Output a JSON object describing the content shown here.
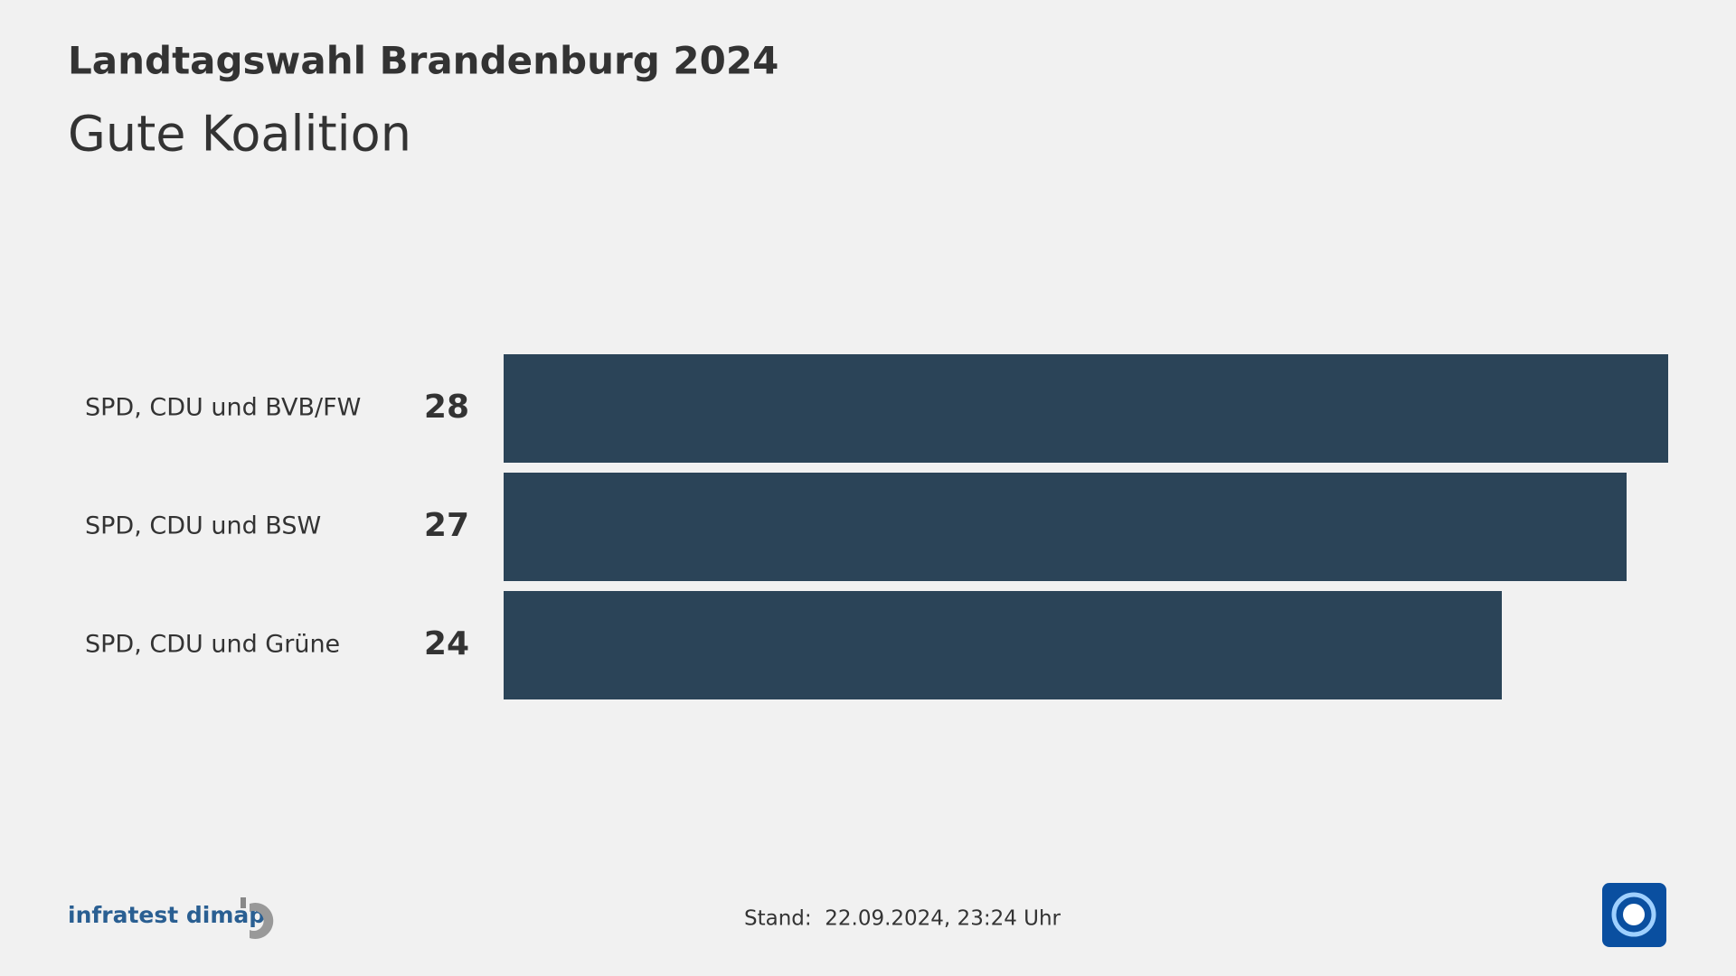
{
  "chart_data": {
    "type": "hbar",
    "title": "Landtagswahl Brandenburg 2024",
    "subtitle": "Gute Koalition",
    "categories": [
      "SPD, CDU und BVB/FW",
      "SPD, CDU und BSW",
      "SPD, CDU und Grüne"
    ],
    "values": [
      28,
      27,
      24
    ],
    "color": "#2b4458"
  },
  "footer": {
    "source": "infratest dimap",
    "stand": "Stand:  22.09.2024, 23:24 Uhr"
  }
}
